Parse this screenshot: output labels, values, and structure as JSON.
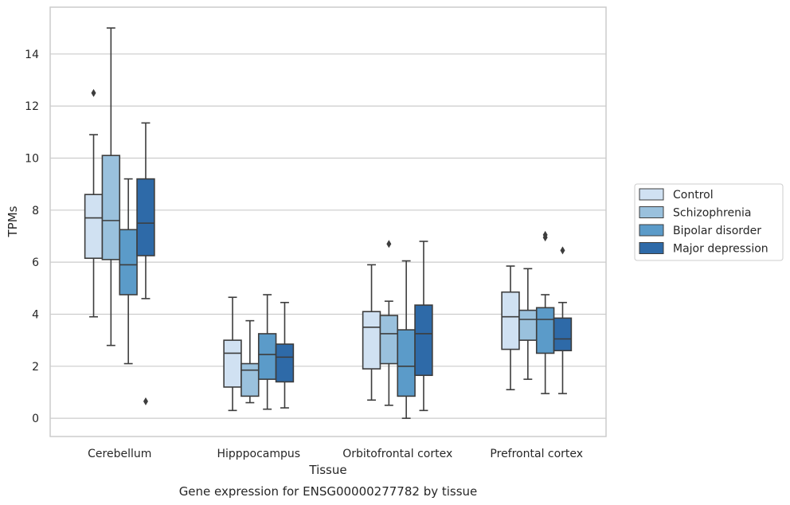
{
  "caption": "Gene expression for ENSG00000277782 by tissue",
  "chart_data": {
    "type": "box",
    "xlabel": "Tissue",
    "ylabel": "TPMs",
    "ylim": [
      -0.7,
      15.8
    ],
    "yticks": [
      0,
      2,
      4,
      6,
      8,
      10,
      12,
      14
    ],
    "grid": "horizontal",
    "legend_position": "right",
    "categories": [
      "Cerebellum",
      "Hipppocampus",
      "Orbitofrontal cortex",
      "Prefrontal cortex"
    ],
    "series": [
      {
        "name": "Control",
        "color": "#d0e1f2",
        "boxes": [
          {
            "whislo": 3.9,
            "q1": 6.15,
            "med": 7.7,
            "q3": 8.6,
            "whishi": 10.9,
            "fliers": [
              12.5
            ]
          },
          {
            "whislo": 0.3,
            "q1": 1.2,
            "med": 2.5,
            "q3": 3.0,
            "whishi": 4.65,
            "fliers": []
          },
          {
            "whislo": 0.7,
            "q1": 1.9,
            "med": 3.5,
            "q3": 4.1,
            "whishi": 5.9,
            "fliers": []
          },
          {
            "whislo": 1.1,
            "q1": 2.65,
            "med": 3.9,
            "q3": 4.85,
            "whishi": 5.85,
            "fliers": []
          }
        ]
      },
      {
        "name": "Schizophrenia",
        "color": "#9ac1dd",
        "boxes": [
          {
            "whislo": 2.8,
            "q1": 6.1,
            "med": 7.6,
            "q3": 10.1,
            "whishi": 15.0,
            "fliers": []
          },
          {
            "whislo": 0.6,
            "q1": 0.85,
            "med": 1.85,
            "q3": 2.1,
            "whishi": 3.75,
            "fliers": []
          },
          {
            "whislo": 0.5,
            "q1": 2.1,
            "med": 3.25,
            "q3": 3.95,
            "whishi": 4.5,
            "fliers": [
              6.7
            ]
          },
          {
            "whislo": 1.5,
            "q1": 3.0,
            "med": 3.8,
            "q3": 4.15,
            "whishi": 5.75,
            "fliers": []
          }
        ]
      },
      {
        "name": "Bipolar disorder",
        "color": "#5b9bc9",
        "boxes": [
          {
            "whislo": 2.1,
            "q1": 4.75,
            "med": 5.9,
            "q3": 7.25,
            "whishi": 9.2,
            "fliers": []
          },
          {
            "whislo": 0.35,
            "q1": 1.5,
            "med": 2.45,
            "q3": 3.25,
            "whishi": 4.75,
            "fliers": []
          },
          {
            "whislo": 0.0,
            "q1": 0.85,
            "med": 2.0,
            "q3": 3.4,
            "whishi": 6.05,
            "fliers": []
          },
          {
            "whislo": 0.95,
            "q1": 2.5,
            "med": 3.8,
            "q3": 4.25,
            "whishi": 4.75,
            "fliers": [
              6.95,
              7.05
            ]
          }
        ]
      },
      {
        "name": "Major depression",
        "color": "#2e6aa8",
        "boxes": [
          {
            "whislo": 4.6,
            "q1": 6.25,
            "med": 7.5,
            "q3": 9.2,
            "whishi": 11.35,
            "fliers": [
              0.65
            ]
          },
          {
            "whislo": 0.4,
            "q1": 1.4,
            "med": 2.35,
            "q3": 2.85,
            "whishi": 4.45,
            "fliers": []
          },
          {
            "whislo": 0.3,
            "q1": 1.65,
            "med": 3.25,
            "q3": 4.35,
            "whishi": 6.8,
            "fliers": []
          },
          {
            "whislo": 0.95,
            "q1": 2.6,
            "med": 3.05,
            "q3": 3.85,
            "whishi": 4.45,
            "fliers": [
              6.45
            ]
          }
        ]
      }
    ]
  }
}
